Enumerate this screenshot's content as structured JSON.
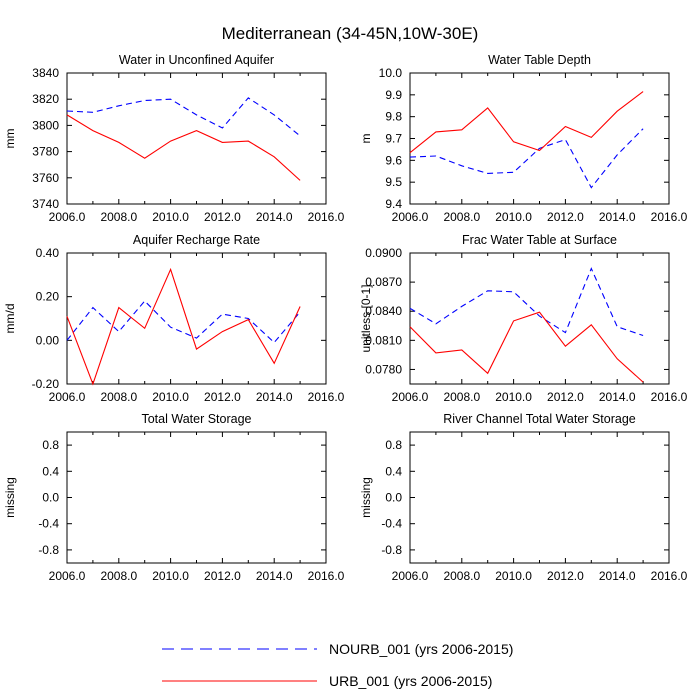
{
  "title": "Mediterranean (34-45N,10W-30E)",
  "series_styles": [
    {
      "name": "NOURB_001",
      "color": "#0000ff",
      "dash": true
    },
    {
      "name": "URB_001",
      "color": "#ff0000",
      "dash": false
    }
  ],
  "legend": [
    {
      "label": "NOURB_001 (yrs 2006-2015)"
    },
    {
      "label": "URB_001 (yrs 2006-2015)"
    }
  ],
  "chart_data": [
    {
      "type": "line",
      "title": "Water in Unconfined Aquifer",
      "ylabel": "mm",
      "xlim": [
        2006,
        2016
      ],
      "ylim": [
        3740,
        3840
      ],
      "xticks": [
        "2006.0",
        "2008.0",
        "2010.0",
        "2012.0",
        "2014.0",
        "2016.0"
      ],
      "yticks": [
        {
          "v": 3740,
          "t": "3740"
        },
        {
          "v": 3760,
          "t": "3760"
        },
        {
          "v": 3780,
          "t": "3780"
        },
        {
          "v": 3800,
          "t": "3800"
        },
        {
          "v": 3820,
          "t": "3820"
        },
        {
          "v": 3840,
          "t": "3840"
        }
      ],
      "x": [
        2006,
        2007,
        2008,
        2009,
        2010,
        2011,
        2012,
        2013,
        2014,
        2015
      ],
      "series": [
        {
          "values": [
            3811,
            3810,
            3815,
            3819,
            3820,
            3808,
            3798,
            3821,
            3808,
            3792
          ]
        },
        {
          "values": [
            3808,
            3796,
            3787,
            3775,
            3788,
            3796,
            3787,
            3788,
            3776,
            3758
          ]
        }
      ]
    },
    {
      "type": "line",
      "title": "Water Table Depth",
      "ylabel": "m",
      "xlim": [
        2006,
        2016
      ],
      "ylim": [
        9.4,
        10.0
      ],
      "xticks": [
        "2006.0",
        "2008.0",
        "2010.0",
        "2012.0",
        "2014.0",
        "2016.0"
      ],
      "yticks": [
        {
          "v": 9.4,
          "t": "9.4"
        },
        {
          "v": 9.5,
          "t": "9.5"
        },
        {
          "v": 9.6,
          "t": "9.6"
        },
        {
          "v": 9.7,
          "t": "9.7"
        },
        {
          "v": 9.8,
          "t": "9.8"
        },
        {
          "v": 9.9,
          "t": "9.9"
        },
        {
          "v": 10.0,
          "t": "10.0"
        }
      ],
      "x": [
        2006,
        2007,
        2008,
        2009,
        2010,
        2011,
        2012,
        2013,
        2014,
        2015
      ],
      "series": [
        {
          "values": [
            9.615,
            9.62,
            9.575,
            9.54,
            9.545,
            9.655,
            9.695,
            9.475,
            9.625,
            9.745
          ]
        },
        {
          "values": [
            9.635,
            9.73,
            9.74,
            9.84,
            9.685,
            9.645,
            9.755,
            9.705,
            9.825,
            9.915
          ]
        }
      ]
    },
    {
      "type": "line",
      "title": "Aquifer Recharge Rate",
      "ylabel": "mm/d",
      "xlim": [
        2006,
        2016
      ],
      "ylim": [
        -0.2,
        0.4
      ],
      "xticks": [
        "2006.0",
        "2008.0",
        "2010.0",
        "2012.0",
        "2014.0",
        "2016.0"
      ],
      "yticks": [
        {
          "v": -0.2,
          "t": "-0.20"
        },
        {
          "v": 0.0,
          "t": "0.00"
        },
        {
          "v": 0.2,
          "t": "0.20"
        },
        {
          "v": 0.4,
          "t": "0.40"
        }
      ],
      "x": [
        2006,
        2007,
        2008,
        2009,
        2010,
        2011,
        2012,
        2013,
        2014,
        2015
      ],
      "series": [
        {
          "values": [
            0.0,
            0.15,
            0.04,
            0.18,
            0.06,
            0.01,
            0.12,
            0.1,
            -0.01,
            0.13
          ]
        },
        {
          "values": [
            0.11,
            -0.2,
            0.15,
            0.055,
            0.325,
            -0.04,
            0.04,
            0.095,
            -0.105,
            0.155
          ]
        }
      ]
    },
    {
      "type": "line",
      "title": "Frac Water Table at Surface",
      "ylabel": "unitless [0-1]",
      "xlim": [
        2006,
        2016
      ],
      "ylim": [
        0.0765,
        0.09
      ],
      "xticks": [
        "2006.0",
        "2008.0",
        "2010.0",
        "2012.0",
        "2014.0",
        "2016.0"
      ],
      "yticks": [
        {
          "v": 0.078,
          "t": "0.0780"
        },
        {
          "v": 0.081,
          "t": "0.0810"
        },
        {
          "v": 0.084,
          "t": "0.0840"
        },
        {
          "v": 0.087,
          "t": "0.0870"
        },
        {
          "v": 0.09,
          "t": "0.0900"
        }
      ],
      "x": [
        2006,
        2007,
        2008,
        2009,
        2010,
        2011,
        2012,
        2013,
        2014,
        2015
      ],
      "series": [
        {
          "values": [
            0.0843,
            0.0827,
            0.0845,
            0.0861,
            0.086,
            0.0835,
            0.0818,
            0.0884,
            0.0824,
            0.0815
          ]
        },
        {
          "values": [
            0.0824,
            0.0797,
            0.08,
            0.0776,
            0.083,
            0.0839,
            0.0804,
            0.0826,
            0.0791,
            0.0767
          ]
        }
      ]
    },
    {
      "type": "line",
      "title": "Total Water Storage",
      "ylabel": "missing",
      "xlim": [
        2006,
        2016
      ],
      "ylim": [
        -1,
        1
      ],
      "xticks": [
        "2006.0",
        "2008.0",
        "2010.0",
        "2012.0",
        "2014.0",
        "2016.0"
      ],
      "yticks": [
        {
          "v": -0.8,
          "t": "-0.8"
        },
        {
          "v": -0.4,
          "t": "-0.4"
        },
        {
          "v": 0.0,
          "t": "0.0"
        },
        {
          "v": 0.4,
          "t": "0.4"
        },
        {
          "v": 0.8,
          "t": "0.8"
        }
      ],
      "x": [],
      "series": []
    },
    {
      "type": "line",
      "title": "River Channel Total Water Storage",
      "ylabel": "missing",
      "xlim": [
        2006,
        2016
      ],
      "ylim": [
        -1,
        1
      ],
      "xticks": [
        "2006.0",
        "2008.0",
        "2010.0",
        "2012.0",
        "2014.0",
        "2016.0"
      ],
      "yticks": [
        {
          "v": -0.8,
          "t": "-0.8"
        },
        {
          "v": -0.4,
          "t": "-0.4"
        },
        {
          "v": 0.0,
          "t": "0.0"
        },
        {
          "v": 0.4,
          "t": "0.4"
        },
        {
          "v": 0.8,
          "t": "0.8"
        }
      ],
      "x": [],
      "series": []
    }
  ]
}
